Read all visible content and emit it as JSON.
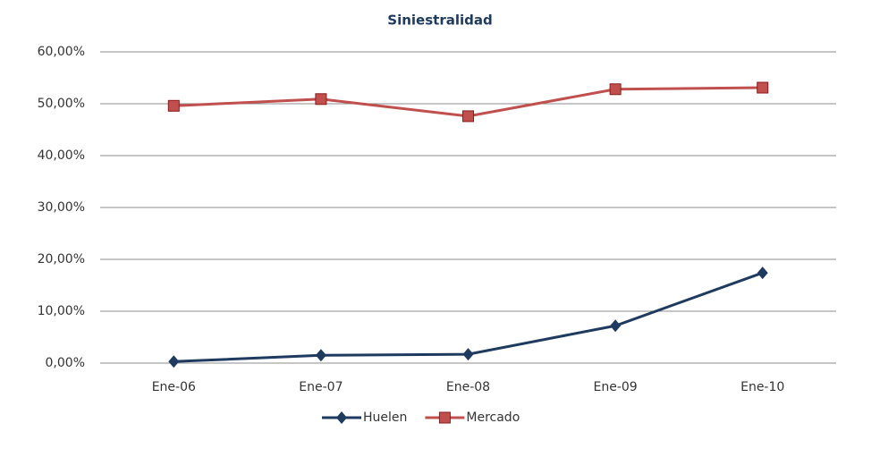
{
  "chart_data": {
    "type": "line",
    "title": "Siniestralidad",
    "categories": [
      "Ene-06",
      "Ene-07",
      "Ene-08",
      "Ene-09",
      "Ene-10"
    ],
    "series": [
      {
        "name": "Huelen",
        "color": "#1f3a5f",
        "marker": "diamond",
        "values": [
          0.3,
          1.5,
          1.7,
          7.2,
          17.4
        ]
      },
      {
        "name": "Mercado",
        "color": "#c0504d",
        "marker": "square",
        "values": [
          49.6,
          50.9,
          47.6,
          52.8,
          53.1
        ]
      }
    ],
    "ylim": [
      0,
      60
    ],
    "yticks": [
      {
        "value": 0,
        "label": "0,00%"
      },
      {
        "value": 10,
        "label": "10,00%"
      },
      {
        "value": 20,
        "label": "20,00%"
      },
      {
        "value": 30,
        "label": "30,00%"
      },
      {
        "value": 40,
        "label": "40,00%"
      },
      {
        "value": 50,
        "label": "50,00%"
      },
      {
        "value": 60,
        "label": "60,00%"
      }
    ],
    "grid": true,
    "legend": "bottom"
  }
}
